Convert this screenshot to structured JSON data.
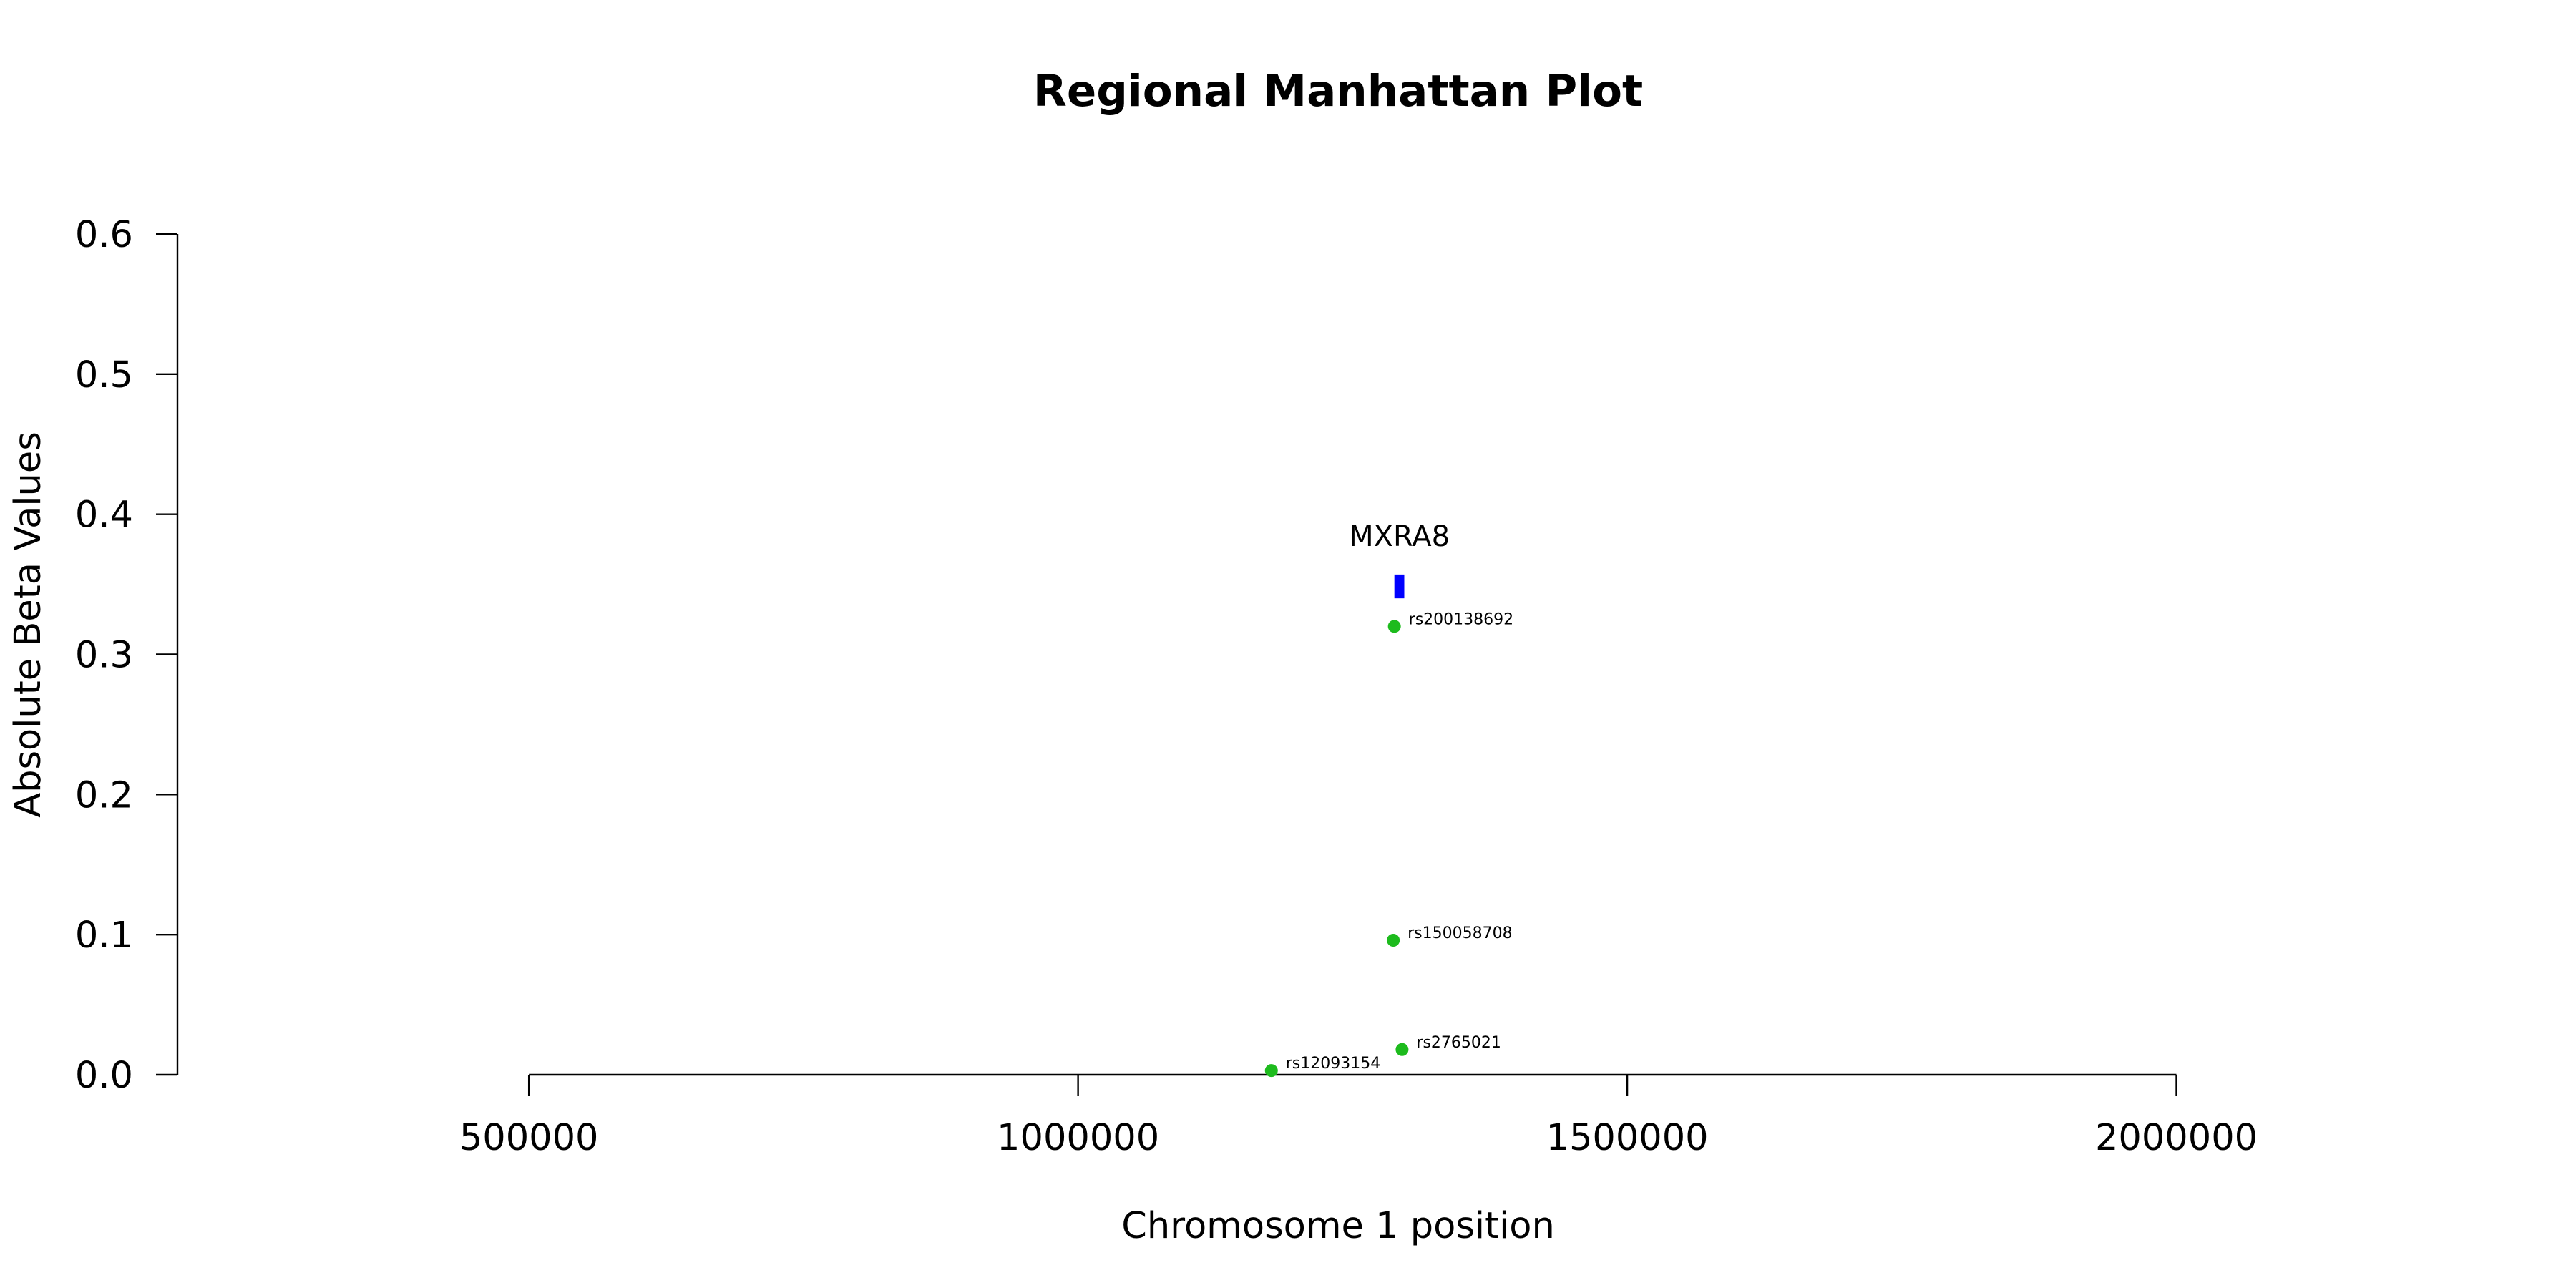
{
  "chart_data": {
    "type": "scatter",
    "title": "Regional Manhattan Plot",
    "xlabel": "Chromosome 1 position",
    "ylabel": "Absolute Beta Values",
    "xlim": [
      180000,
      2300000
    ],
    "ylim": [
      0,
      0.6
    ],
    "x_ticks": [
      500000,
      1000000,
      1500000,
      2000000
    ],
    "x_tick_labels": [
      "500000",
      "1000000",
      "1500000",
      "2000000"
    ],
    "y_ticks": [
      0,
      0.1,
      0.2,
      0.3,
      0.4,
      0.5,
      0.6
    ],
    "y_tick_labels": [
      "0.0",
      "0.1",
      "0.2",
      "0.3",
      "0.4",
      "0.5",
      "0.6"
    ],
    "point_color": "#1dbb1d",
    "gene_color": "#0000ff",
    "grid": false,
    "points": [
      {
        "label": "rs200138692",
        "x": 1288000,
        "y": 0.32
      },
      {
        "label": "rs150058708",
        "x": 1287000,
        "y": 0.096
      },
      {
        "label": "rs2765021",
        "x": 1295000,
        "y": 0.018
      },
      {
        "label": "rs12093154",
        "x": 1176000,
        "y": 0.003
      }
    ],
    "genes": [
      {
        "name": "MXRA8",
        "start": 1288000,
        "end": 1297000,
        "y_low": 0.34,
        "y_high": 0.357
      }
    ]
  }
}
